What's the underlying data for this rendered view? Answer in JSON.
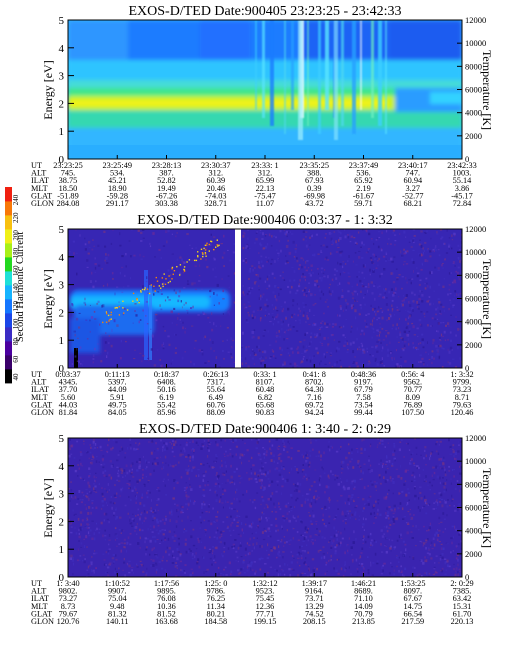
{
  "colorbar": {
    "label": "Second Harmonic Current",
    "ticks": [
      "40",
      "60",
      "80",
      "100",
      "120",
      "140",
      "160",
      "180",
      "200",
      "220",
      "240"
    ]
  },
  "chart_data": [
    {
      "type": "heatmap",
      "title": "EXOS-D/TED   Date:900405  23:23:25 - 23:42:33",
      "ylabel": "Energy [eV]",
      "ylim": [
        0,
        5
      ],
      "yticks": [
        "0",
        "1",
        "2",
        "3",
        "4",
        "5"
      ],
      "y2label": "Temperature [K]",
      "y2ticks": [
        "0",
        "2000",
        "4000",
        "6000",
        "8000",
        "10000",
        "12000"
      ],
      "orbit": {
        "labels": [
          "UT",
          "ALT",
          "ILAT",
          "MLT",
          "GLAT",
          "GLON"
        ],
        "columns": [
          [
            "23:23:25",
            "745.",
            "38.75",
            "18.50",
            "-51.89",
            "284.08"
          ],
          [
            "23:25:49",
            "534.",
            "45.21",
            "18.90",
            "-59.28",
            "291.17"
          ],
          [
            "23:28:13",
            "387.",
            "52.82",
            "19.49",
            "-67.26",
            "303.38"
          ],
          [
            "23:30:37",
            "312.",
            "60.39",
            "20.46",
            "-74.03",
            "328.71"
          ],
          [
            "23:33: 1",
            "312.",
            "65.99",
            "22.13",
            "-75.47",
            "11.07"
          ],
          [
            "23:35:25",
            "388.",
            "67.93",
            "0.39",
            "-69.98",
            "43.72"
          ],
          [
            "23:37:49",
            "536.",
            "65.92",
            "2.19",
            "-61.67",
            "59.71"
          ],
          [
            "23:40:17",
            "747.",
            "60.94",
            "3.27",
            "-52.77",
            "68.21"
          ],
          [
            "23:42:33",
            "1003.",
            "55.14",
            "3.86",
            "-45.17",
            "72.84"
          ]
        ]
      }
    },
    {
      "type": "heatmap",
      "title": "EXOS-D/TED   Date:900406  0:03:37 - 1: 3:32",
      "ylabel": "Energy [eV]",
      "ylim": [
        0,
        5
      ],
      "yticks": [
        "0",
        "1",
        "2",
        "3",
        "4",
        "5"
      ],
      "y2label": "Temperature [K]",
      "y2ticks": [
        "0",
        "2000",
        "4000",
        "6000",
        "8000",
        "10000",
        "12000"
      ],
      "orbit": {
        "labels": [
          "UT",
          "ALT",
          "ILAT",
          "MLT",
          "GLAT",
          "GLON"
        ],
        "columns": [
          [
            "0:03:37",
            "4345.",
            "37.70",
            "5.60",
            "44.03",
            "81.84"
          ],
          [
            "0:11:13",
            "5397.",
            "44.09",
            "5.91",
            "49.75",
            "84.05"
          ],
          [
            "0:18:37",
            "6408.",
            "50.16",
            "6.19",
            "55.42",
            "85.96"
          ],
          [
            "0:26:13",
            "7317.",
            "55.64",
            "6.49",
            "60.76",
            "88.09"
          ],
          [
            "0:33: 1",
            "8107.",
            "60.48",
            "6.82",
            "65.68",
            "90.83"
          ],
          [
            "0:41: 8",
            "8702.",
            "64.30",
            "7.16",
            "69.72",
            "94.24"
          ],
          [
            "0:48:36",
            "9197.",
            "67.79",
            "7.58",
            "73.54",
            "99.44"
          ],
          [
            "0:56: 4",
            "9562.",
            "70.77",
            "8.09",
            "76.89",
            "107.50"
          ],
          [
            "1: 3:32",
            "9799.",
            "73.23",
            "8.71",
            "79.63",
            "120.46"
          ]
        ]
      }
    },
    {
      "type": "heatmap",
      "title": "EXOS-D/TED   Date:900406  1: 3:40 - 2: 0:29",
      "ylabel": "Energy [eV]",
      "ylim": [
        0,
        5
      ],
      "yticks": [
        "0",
        "1",
        "2",
        "3",
        "4",
        "5"
      ],
      "y2label": "Temperature [K]",
      "y2ticks": [
        "0",
        "2000",
        "4000",
        "6000",
        "8000",
        "10000",
        "12000"
      ],
      "orbit": {
        "labels": [
          "UT",
          "ALT",
          "ILAT",
          "MLT",
          "GLAT",
          "GLON"
        ],
        "columns": [
          [
            "1: 3:40",
            "9802.",
            "73.27",
            "8.73",
            "79.67",
            "120.76"
          ],
          [
            "1:10:52",
            "9907.",
            "75.04",
            "9.48",
            "81.32",
            "140.11"
          ],
          [
            "1:17:56",
            "9895.",
            "76.08",
            "10.36",
            "81.52",
            "163.68"
          ],
          [
            "1:25: 0",
            "9786.",
            "76.25",
            "11.34",
            "80.21",
            "184.58"
          ],
          [
            "1:32:12",
            "9523.",
            "75.45",
            "12.36",
            "77.71",
            "199.15"
          ],
          [
            "1:39:17",
            "9164.",
            "73.71",
            "13.29",
            "74.52",
            "208.15"
          ],
          [
            "1:46:21",
            "8689.",
            "71.10",
            "14.09",
            "70.79",
            "213.85"
          ],
          [
            "1:53:25",
            "8097.",
            "67.67",
            "14.75",
            "66.54",
            "217.59"
          ],
          [
            "2: 0:29",
            "7385.",
            "63.42",
            "15.31",
            "61.70",
            "220.13"
          ]
        ]
      }
    }
  ]
}
